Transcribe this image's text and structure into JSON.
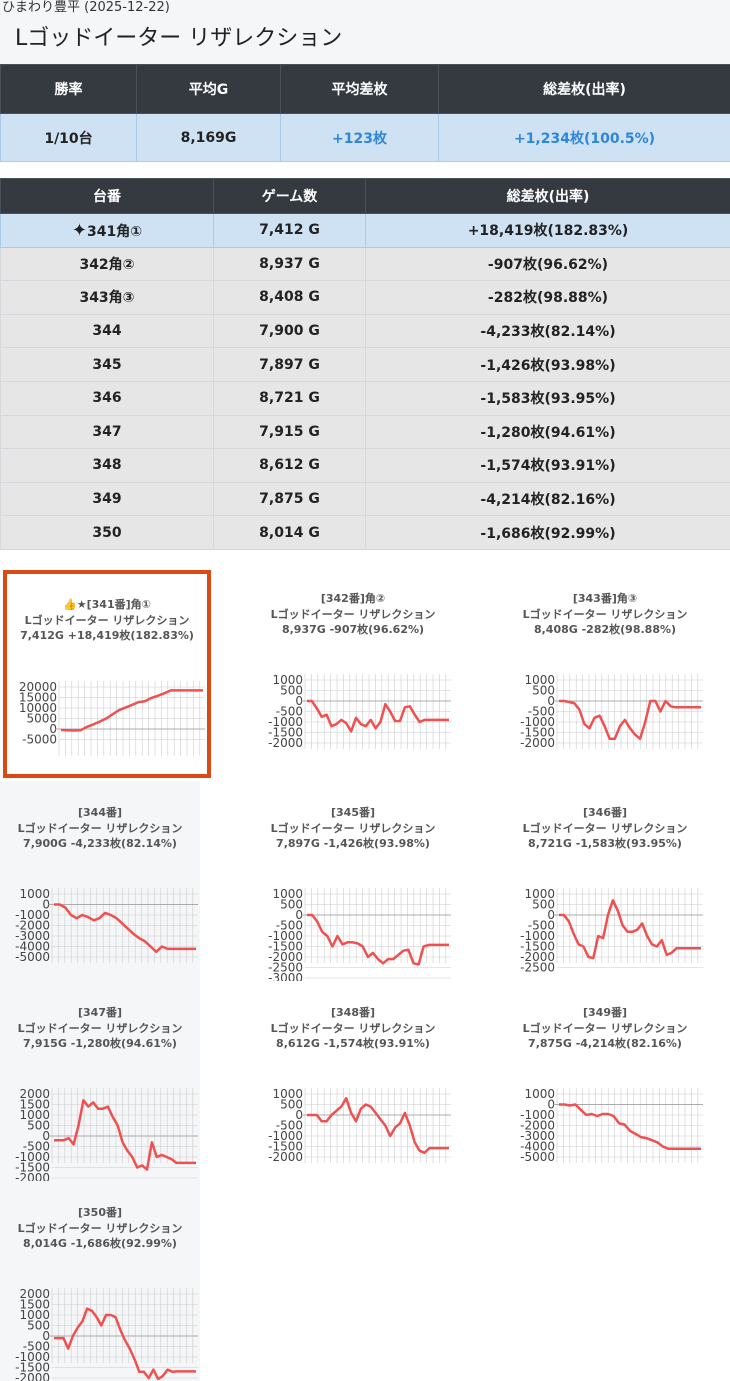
{
  "header": {
    "subtitle": "ひまわり豊平 (2025-12-22)",
    "title": "Lゴッドイーター リザレクション"
  },
  "summary": {
    "headers": [
      "勝率",
      "平均G",
      "平均差枚",
      "総差枚(出率)"
    ],
    "values": [
      "1/10台",
      "8,169G",
      "+123枚",
      "+1,234枚(100.5%)"
    ]
  },
  "machines": {
    "headers": [
      "台番",
      "ゲーム数",
      "総差枚(出率)"
    ],
    "rows": [
      {
        "id": "341角①",
        "prefix": "✦",
        "games": "7,412 G",
        "diff": "+18,419枚(182.83%)"
      },
      {
        "id": "342角②",
        "games": "8,937 G",
        "diff": "-907枚(96.62%)"
      },
      {
        "id": "343角③",
        "games": "8,408 G",
        "diff": "-282枚(98.88%)"
      },
      {
        "id": "344",
        "games": "7,900 G",
        "diff": "-4,233枚(82.14%)"
      },
      {
        "id": "345",
        "games": "7,897 G",
        "diff": "-1,426枚(93.98%)"
      },
      {
        "id": "346",
        "games": "8,721 G",
        "diff": "-1,583枚(93.95%)"
      },
      {
        "id": "347",
        "games": "7,915 G",
        "diff": "-1,280枚(94.61%)"
      },
      {
        "id": "348",
        "games": "8,612 G",
        "diff": "-1,574枚(93.91%)"
      },
      {
        "id": "349",
        "games": "7,875 G",
        "diff": "-4,214枚(82.16%)"
      },
      {
        "id": "350",
        "games": "8,014 G",
        "diff": "-1,686枚(92.99%)"
      }
    ]
  },
  "colors": {
    "line": "#f05050",
    "grid": "#cccccc",
    "selected_border": "#dc4a14",
    "highlight": "#cfe2f3",
    "positive_text": "#2d86d8"
  },
  "chart_data": [
    {
      "type": "line",
      "title_lines": [
        "👍★[341番]角①",
        "Lゴッドイーター リザレクション",
        "7,412G +18,419枚(182.83%)"
      ],
      "yticks": [
        20000,
        15000,
        10000,
        5000,
        0,
        -5000
      ],
      "ylim": [
        -7000,
        22000
      ],
      "values": [
        -500,
        -600,
        -700,
        -600,
        1000,
        2200,
        3500,
        5000,
        7000,
        9000,
        10200,
        11500,
        12800,
        13200,
        14800,
        15800,
        17000,
        18400,
        18400,
        18400,
        18400,
        18400,
        18400
      ]
    },
    {
      "type": "line",
      "title_lines": [
        "[342番]角②",
        "Lゴッドイーター リザレクション",
        "8,937G -907枚(96.62%)"
      ],
      "yticks": [
        1000,
        500,
        0,
        -500,
        -1000,
        -1500,
        -2000
      ],
      "ylim": [
        -2200,
        1100
      ],
      "values": [
        0,
        0,
        -350,
        -750,
        -650,
        -1200,
        -1100,
        -900,
        -1050,
        -1450,
        -800,
        -1100,
        -1200,
        -900,
        -1300,
        -1000,
        -150,
        -500,
        -950,
        -950,
        -300,
        -250,
        -650,
        -1000,
        -900,
        -900,
        -900,
        -900,
        -900,
        -900
      ]
    },
    {
      "type": "line",
      "title_lines": [
        "[343番]角③",
        "Lゴッドイーター リザレクション",
        "8,408G -282枚(98.88%)"
      ],
      "yticks": [
        1000,
        500,
        0,
        -500,
        -1000,
        -1500,
        -2000
      ],
      "ylim": [
        -2200,
        1100
      ],
      "values": [
        0,
        0,
        -50,
        -100,
        -400,
        -1100,
        -1300,
        -800,
        -700,
        -1200,
        -1800,
        -1800,
        -1200,
        -900,
        -1300,
        -1600,
        -1800,
        -1000,
        0,
        0,
        -500,
        0,
        -250,
        -300,
        -300,
        -300,
        -300,
        -300,
        -300
      ]
    },
    {
      "type": "line",
      "title_lines": [
        "[344番]",
        "Lゴッドイーター リザレクション",
        "7,900G -4,233枚(82.14%)"
      ],
      "yticks": [
        1000,
        0,
        -1000,
        -2000,
        -3000,
        -4000,
        -5000
      ],
      "ylim": [
        -5200,
        1100
      ],
      "values": [
        0,
        0,
        -300,
        -1000,
        -1300,
        -1000,
        -1200,
        -1500,
        -1300,
        -800,
        -1000,
        -1300,
        -1800,
        -2300,
        -2800,
        -3200,
        -3500,
        -4000,
        -4500,
        -4000,
        -4233,
        -4233,
        -4233,
        -4233,
        -4233,
        -4233
      ]
    },
    {
      "type": "line",
      "title_lines": [
        "[345番]",
        "Lゴッドイーター リザレクション",
        "7,897G -1,426枚(93.98%)"
      ],
      "yticks": [
        1000,
        500,
        0,
        -500,
        -1000,
        -1500,
        -2000,
        -2500,
        -3000
      ],
      "ylim": [
        -3100,
        1100
      ],
      "values": [
        0,
        0,
        -300,
        -800,
        -1000,
        -1500,
        -1000,
        -1400,
        -1300,
        -1300,
        -1350,
        -1500,
        -2000,
        -1800,
        -2100,
        -2300,
        -2100,
        -2100,
        -1900,
        -1700,
        -1650,
        -2300,
        -2350,
        -1500,
        -1426,
        -1426,
        -1426,
        -1426,
        -1426
      ]
    },
    {
      "type": "line",
      "title_lines": [
        "[346番]",
        "Lゴッドイーター リザレクション",
        "8,721G -1,583枚(93.95%)"
      ],
      "yticks": [
        1000,
        500,
        0,
        -500,
        -1000,
        -1500,
        -2000,
        -2500
      ],
      "ylim": [
        -2600,
        1100
      ],
      "values": [
        0,
        0,
        -300,
        -900,
        -1400,
        -1500,
        -2000,
        -2050,
        -1000,
        -1100,
        0,
        700,
        200,
        -500,
        -800,
        -800,
        -700,
        -400,
        -1000,
        -1400,
        -1500,
        -1200,
        -1900,
        -1800,
        -1583,
        -1583,
        -1583,
        -1583,
        -1583,
        -1583
      ]
    },
    {
      "type": "line",
      "title_lines": [
        "[347番]",
        "Lゴッドイーター リザレクション",
        "7,915G -1,280枚(94.61%)"
      ],
      "yticks": [
        2000,
        1500,
        1000,
        500,
        0,
        -500,
        -1000,
        -1500,
        -2000
      ],
      "ylim": [
        -2100,
        2100
      ],
      "values": [
        -200,
        -200,
        -200,
        -100,
        -400,
        500,
        1700,
        1400,
        1600,
        1300,
        1300,
        1400,
        900,
        500,
        -300,
        -700,
        -1000,
        -1500,
        -1400,
        -1600,
        -300,
        -1000,
        -900,
        -1000,
        -1100,
        -1280,
        -1280,
        -1280,
        -1280,
        -1280
      ]
    },
    {
      "type": "line",
      "title_lines": [
        "[348番]",
        "Lゴッドイーター リザレクション",
        "8,612G -1,574枚(93.91%)"
      ],
      "yticks": [
        1000,
        500,
        0,
        -500,
        -1000,
        -1500,
        -2000
      ],
      "ylim": [
        -2200,
        1100
      ],
      "values": [
        0,
        0,
        0,
        -300,
        -300,
        0,
        200,
        400,
        800,
        100,
        -300,
        300,
        500,
        400,
        100,
        -200,
        -500,
        -1000,
        -600,
        -400,
        100,
        -500,
        -1300,
        -1700,
        -1800,
        -1574,
        -1574,
        -1574,
        -1574,
        -1574
      ]
    },
    {
      "type": "line",
      "title_lines": [
        "[349番]",
        "Lゴッドイーター リザレクション",
        "7,875G -4,214枚(82.16%)"
      ],
      "yticks": [
        1000,
        0,
        -1000,
        -2000,
        -3000,
        -4000,
        -5000
      ],
      "ylim": [
        -5200,
        1100
      ],
      "values": [
        0,
        0,
        -100,
        0,
        -500,
        -1000,
        -900,
        -1100,
        -900,
        -900,
        -1100,
        -1800,
        -1900,
        -2500,
        -2800,
        -3100,
        -3200,
        -3400,
        -3600,
        -4000,
        -4214,
        -4214,
        -4214,
        -4214,
        -4214,
        -4214,
        -4214
      ]
    },
    {
      "type": "line",
      "title_lines": [
        "[350番]",
        "Lゴッドイーター リザレクション",
        "8,014G -1,686枚(92.99%)"
      ],
      "yticks": [
        2000,
        1500,
        1000,
        500,
        0,
        -500,
        -1000,
        -1500,
        -2000
      ],
      "ylim": [
        -2100,
        2100
      ],
      "values": [
        -100,
        -100,
        -100,
        -600,
        0,
        400,
        700,
        1300,
        1200,
        900,
        500,
        1000,
        1000,
        900,
        300,
        -200,
        -600,
        -1100,
        -1700,
        -1700,
        -2000,
        -1600,
        -2050,
        -1900,
        -1600,
        -1700,
        -1686,
        -1686,
        -1686,
        -1686,
        -1686
      ]
    }
  ]
}
